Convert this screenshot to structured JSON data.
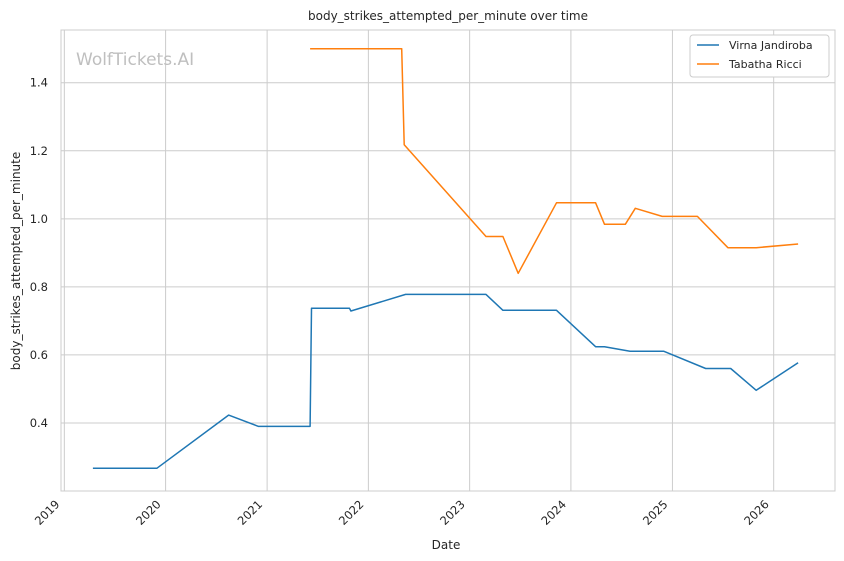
{
  "watermark": "WolfTickets.AI",
  "colors": {
    "series_0": "#1f77b4",
    "series_1": "#ff7f0e",
    "grid": "#cccccc",
    "frame": "#cccccc"
  },
  "chart_data": {
    "type": "line",
    "title": "body_strikes_attempted_per_minute over time",
    "xlabel": "Date",
    "ylabel": "body_strikes_attempted_per_minute",
    "xlim": [
      "2018-12-20",
      "2026-08-10"
    ],
    "ylim": [
      0.2,
      1.555
    ],
    "x_ticks": [
      "2019",
      "2020",
      "2021",
      "2022",
      "2023",
      "2024",
      "2025",
      "2026"
    ],
    "y_ticks": [
      "0.4",
      "0.6",
      "0.8",
      "1.0",
      "1.2",
      "1.4"
    ],
    "grid": true,
    "legend_position": "top-right",
    "series": [
      {
        "name": "Virna Jandiroba",
        "color": "#1f77b4",
        "points": [
          [
            "2019-04-14",
            0.267
          ],
          [
            "2019-12-01",
            0.267
          ],
          [
            "2020-08-15",
            0.423
          ],
          [
            "2020-12-01",
            0.39
          ],
          [
            "2021-06-05",
            0.39
          ],
          [
            "2021-06-10",
            0.737
          ],
          [
            "2021-10-25",
            0.737
          ],
          [
            "2021-10-30",
            0.729
          ],
          [
            "2022-05-15",
            0.778
          ],
          [
            "2023-03-01",
            0.778
          ],
          [
            "2023-05-01",
            0.731
          ],
          [
            "2023-11-10",
            0.731
          ],
          [
            "2024-03-30",
            0.624
          ],
          [
            "2024-05-01",
            0.624
          ],
          [
            "2024-08-01",
            0.611
          ],
          [
            "2024-11-30",
            0.611
          ],
          [
            "2025-05-01",
            0.56
          ],
          [
            "2025-07-30",
            0.56
          ],
          [
            "2025-10-30",
            0.496
          ],
          [
            "2026-03-30",
            0.577
          ]
        ]
      },
      {
        "name": "Tabatha Ricci",
        "color": "#ff7f0e",
        "points": [
          [
            "2021-06-05",
            1.5
          ],
          [
            "2022-05-01",
            1.5
          ],
          [
            "2022-05-10",
            1.218
          ],
          [
            "2023-03-01",
            0.948
          ],
          [
            "2023-05-01",
            0.948
          ],
          [
            "2023-06-25",
            0.84
          ],
          [
            "2023-11-10",
            1.047
          ],
          [
            "2024-03-30",
            1.047
          ],
          [
            "2024-05-01",
            0.984
          ],
          [
            "2024-07-15",
            0.984
          ],
          [
            "2024-08-20",
            1.031
          ],
          [
            "2024-11-25",
            1.007
          ],
          [
            "2025-04-01",
            1.007
          ],
          [
            "2025-07-20",
            0.915
          ],
          [
            "2025-10-30",
            0.915
          ],
          [
            "2026-03-30",
            0.926
          ]
        ]
      }
    ]
  }
}
